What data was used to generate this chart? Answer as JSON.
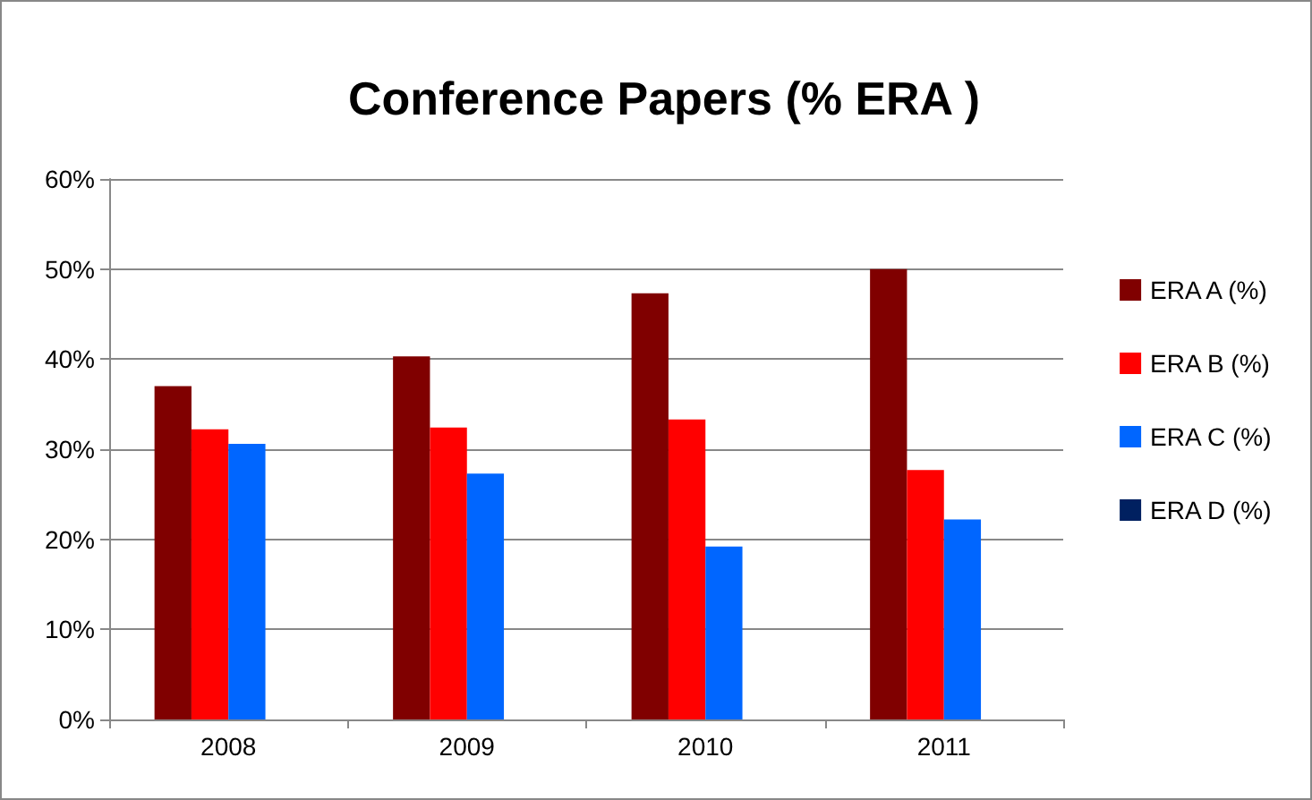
{
  "chart_data": {
    "type": "bar",
    "title": "Conference Papers (% ERA )",
    "categories": [
      "2008",
      "2009",
      "2010",
      "2011"
    ],
    "series": [
      {
        "name": "ERA A (%)",
        "color": "#800000",
        "values": [
          37.0,
          40.3,
          47.3,
          50.0
        ]
      },
      {
        "name": "ERA B (%)",
        "color": "#ff0000",
        "values": [
          32.2,
          32.4,
          33.3,
          27.7
        ]
      },
      {
        "name": "ERA C (%)",
        "color": "#0066ff",
        "values": [
          30.6,
          27.3,
          19.2,
          22.2
        ]
      },
      {
        "name": "ERA D (%)",
        "color": "#002060",
        "values": [
          0,
          0,
          0,
          0
        ]
      }
    ],
    "ylim": [
      0,
      60
    ],
    "yticks": [
      {
        "value": 0,
        "label": "0%"
      },
      {
        "value": 10,
        "label": "10%"
      },
      {
        "value": 20,
        "label": "20%"
      },
      {
        "value": 30,
        "label": "30%"
      },
      {
        "value": 40,
        "label": "40%"
      },
      {
        "value": 50,
        "label": "50%"
      },
      {
        "value": 60,
        "label": "60%"
      }
    ],
    "grid": "y",
    "legend": "right"
  }
}
